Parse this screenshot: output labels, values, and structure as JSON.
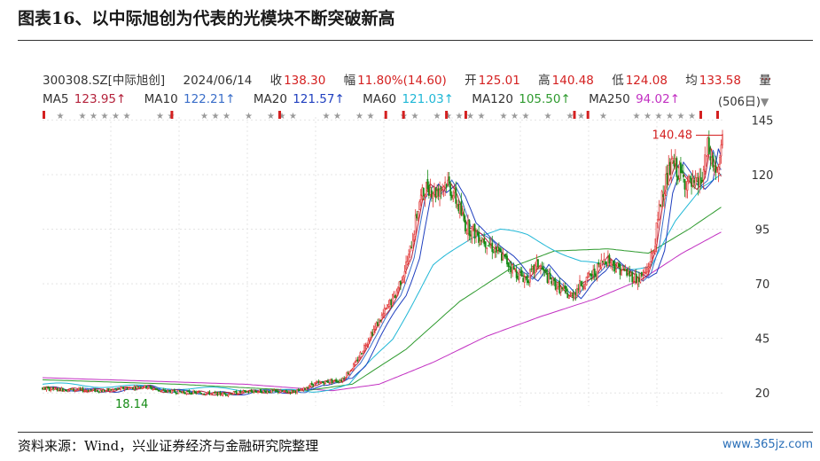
{
  "figure_title": "图表16、以中际旭创为代表的光模块不断突破新高",
  "source_note": "资料来源：Wind，兴业证券经济与金融研究院整理",
  "watermark": "www.365jz.com",
  "header": {
    "code": "300308.SZ[中际旭创]",
    "date": "2024/06/14",
    "close_label": "收",
    "close": "138.30",
    "change_label": "幅",
    "change": "11.80%(14.60)",
    "open_label": "开",
    "open": "125.01",
    "high_label": "高",
    "high": "140.48",
    "low_label": "低",
    "low": "124.08",
    "avg_label": "均",
    "avg": "133.58",
    "vol_label": "量",
    "more": "...",
    "days": "(506日)"
  },
  "ma": [
    {
      "label": "MA5",
      "value": "123.95↑",
      "color": "#b4223b"
    },
    {
      "label": "MA10",
      "value": "122.21↑",
      "color": "#3a6ec9"
    },
    {
      "label": "MA20",
      "value": "121.57↑",
      "color": "#1f3fbf"
    },
    {
      "label": "MA60",
      "value": "121.03↑",
      "color": "#1fb7d6"
    },
    {
      "label": "MA120",
      "value": "105.50↑",
      "color": "#2e9a2e"
    },
    {
      "label": "MA250",
      "value": "94.02↑",
      "color": "#c230c2"
    }
  ],
  "chart_data": {
    "type": "candlestick",
    "n_days": 506,
    "y_range": [
      14,
      148
    ],
    "y_ticks": [
      20,
      45,
      70,
      95,
      120,
      145
    ],
    "annotations": [
      {
        "text": "140.48",
        "kind": "high",
        "value": 140.48
      },
      {
        "text": "18.14",
        "kind": "low",
        "value": 18.14
      }
    ],
    "colors": {
      "up": "#e03030",
      "down": "#148a14",
      "ma5": "#b4223b",
      "ma10": "#3a6ec9",
      "ma20": "#1f3fbf",
      "ma60": "#1fb7d6",
      "ma120": "#2e9a2e",
      "ma250": "#c230c2"
    },
    "price_path": [
      [
        0,
        22
      ],
      [
        20,
        21.5
      ],
      [
        45,
        21
      ],
      [
        60,
        22
      ],
      [
        75,
        23
      ],
      [
        88,
        21
      ],
      [
        100,
        20.5
      ],
      [
        118,
        20
      ],
      [
        135,
        19.5
      ],
      [
        150,
        20.5
      ],
      [
        165,
        20.8
      ],
      [
        180,
        20.5
      ],
      [
        192,
        21
      ],
      [
        200,
        24
      ],
      [
        210,
        25
      ],
      [
        222,
        26
      ],
      [
        232,
        33
      ],
      [
        242,
        45
      ],
      [
        252,
        55
      ],
      [
        262,
        65
      ],
      [
        272,
        82
      ],
      [
        280,
        108
      ],
      [
        286,
        115
      ],
      [
        292,
        112
      ],
      [
        300,
        117
      ],
      [
        306,
        110
      ],
      [
        314,
        97
      ],
      [
        322,
        93
      ],
      [
        332,
        88
      ],
      [
        342,
        82
      ],
      [
        352,
        75
      ],
      [
        360,
        72
      ],
      [
        368,
        79
      ],
      [
        376,
        72
      ],
      [
        384,
        68
      ],
      [
        392,
        64
      ],
      [
        400,
        70
      ],
      [
        410,
        75
      ],
      [
        418,
        82
      ],
      [
        426,
        78
      ],
      [
        434,
        75
      ],
      [
        442,
        72
      ],
      [
        448,
        75
      ],
      [
        454,
        86
      ],
      [
        460,
        112
      ],
      [
        468,
        125
      ],
      [
        476,
        118
      ],
      [
        484,
        114
      ],
      [
        490,
        118
      ],
      [
        494,
        132
      ],
      [
        498,
        124
      ],
      [
        502,
        120
      ],
      [
        505,
        138.3
      ]
    ],
    "ma120_path": [
      [
        0,
        26
      ],
      [
        100,
        24
      ],
      [
        195,
        21
      ],
      [
        230,
        24
      ],
      [
        270,
        40
      ],
      [
        310,
        62
      ],
      [
        350,
        78
      ],
      [
        380,
        85
      ],
      [
        420,
        86
      ],
      [
        450,
        84
      ],
      [
        480,
        95
      ],
      [
        505,
        105.5
      ]
    ],
    "ma250_path": [
      [
        0,
        27
      ],
      [
        150,
        24
      ],
      [
        215,
        21
      ],
      [
        250,
        24
      ],
      [
        290,
        34
      ],
      [
        330,
        46
      ],
      [
        370,
        55
      ],
      [
        410,
        63
      ],
      [
        445,
        72
      ],
      [
        475,
        84
      ],
      [
        505,
        94.02
      ]
    ],
    "ma60_path": [
      [
        0,
        24
      ],
      [
        120,
        22
      ],
      [
        200,
        20.5
      ],
      [
        228,
        24
      ],
      [
        260,
        45
      ],
      [
        290,
        78
      ],
      [
        320,
        92
      ],
      [
        340,
        95
      ],
      [
        360,
        92
      ],
      [
        380,
        86
      ],
      [
        400,
        80
      ],
      [
        430,
        77
      ],
      [
        452,
        78
      ],
      [
        470,
        98
      ],
      [
        490,
        115
      ],
      [
        505,
        121.03
      ]
    ]
  }
}
